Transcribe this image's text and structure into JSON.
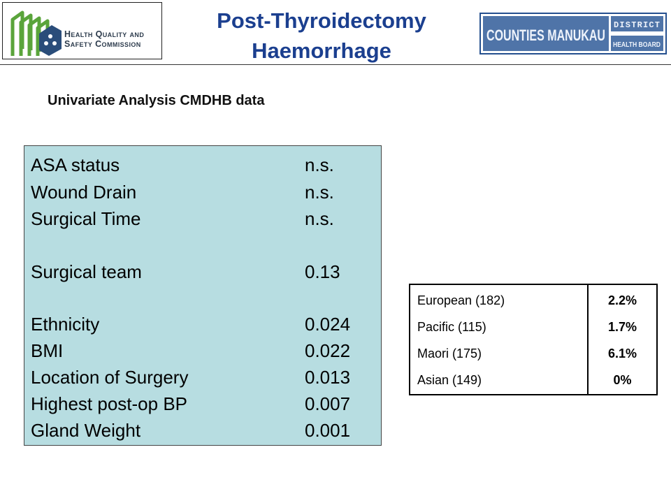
{
  "header": {
    "title_line1": "Post-Thyroidectomy",
    "title_line2": "Haemorrhage",
    "hqsc_logo": {
      "line1": "Health Quality and",
      "line2": "Safety Commission"
    },
    "cm_logo": {
      "name": "COUNTIES MANUKAU",
      "top": "DISTRICT",
      "bottom": "HEALTH BOARD"
    }
  },
  "subtitle": "Univariate Analysis CMDHB data",
  "factors": [
    {
      "label": "ASA status",
      "value": "n.s."
    },
    {
      "label": "Wound Drain",
      "value": "n.s."
    },
    {
      "label": "Surgical Time",
      "value": "n.s."
    },
    {
      "label": "Surgical team",
      "value": "0.13"
    },
    {
      "label": "Ethnicity",
      "value": "0.024"
    },
    {
      "label": "BMI",
      "value": "0.022"
    },
    {
      "label": "Location of Surgery",
      "value": "0.013"
    },
    {
      "label": "Highest post-op BP",
      "value": "0.007"
    },
    {
      "label": "Gland Weight",
      "value": "0.001"
    }
  ],
  "ethnicity_table": [
    {
      "group": "European (182)",
      "rate": "2.2%"
    },
    {
      "group": "Pacific (115)",
      "rate": "1.7%"
    },
    {
      "group": "Maori (175)",
      "rate": "6.1%"
    },
    {
      "group": "Asian (149)",
      "rate": "0%"
    }
  ],
  "colors": {
    "title": "#1b3f8f",
    "factor_box": "#b7dde1",
    "hqsc_green": "#5aa43b",
    "hqsc_blue": "#2a4d7a",
    "cm_blue": "#25508f"
  }
}
